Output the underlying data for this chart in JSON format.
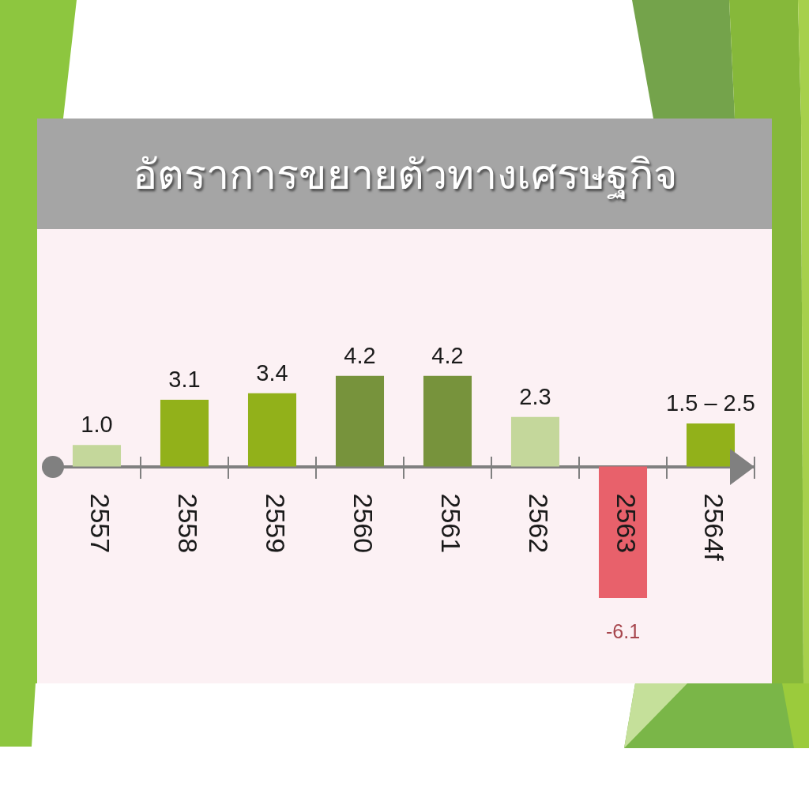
{
  "chart_data": {
    "type": "bar",
    "title": "อัตราการขยายตัวทางเศรษฐกิจ",
    "categories": [
      "2557",
      "2558",
      "2559",
      "2560",
      "2561",
      "2562",
      "2563",
      "2564f"
    ],
    "values": [
      1.0,
      3.1,
      3.4,
      4.2,
      4.2,
      2.3,
      -6.1,
      2.0
    ],
    "colors": [
      "#c4d79b",
      "#92b11a",
      "#92b11a",
      "#77933c",
      "#77933c",
      "#c4d79b",
      "#e8616b",
      "#92b11a"
    ],
    "value_labels": [
      "1.0",
      "3.1",
      "3.4",
      "4.2",
      "4.2",
      "2.3",
      "-6.1",
      null
    ],
    "annotations": [
      {
        "text": "1.5 – 2.5",
        "x": "2564f",
        "y": 2.0
      }
    ],
    "tick_labels": "x"
  }
}
